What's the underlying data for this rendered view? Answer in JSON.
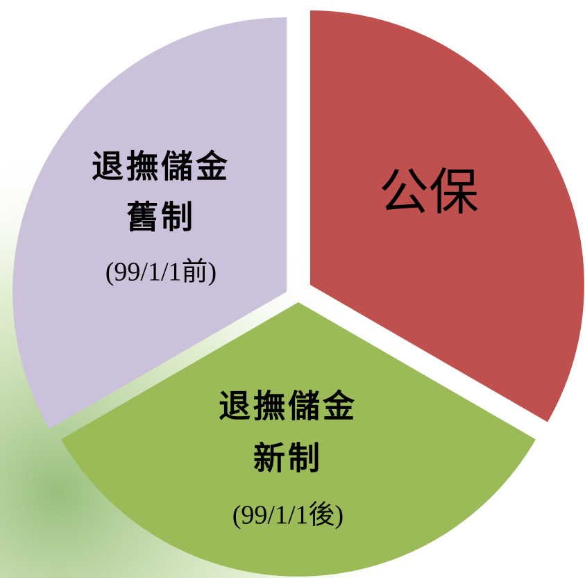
{
  "nodes": [
    {
      "label": "公保"
    },
    {
      "lines": [
        "退撫儲金",
        "新制",
        "(99/1/1後)"
      ]
    },
    {
      "lines": [
        "退撫儲金",
        "舊制",
        "(99/1/1前)"
      ]
    }
  ]
}
